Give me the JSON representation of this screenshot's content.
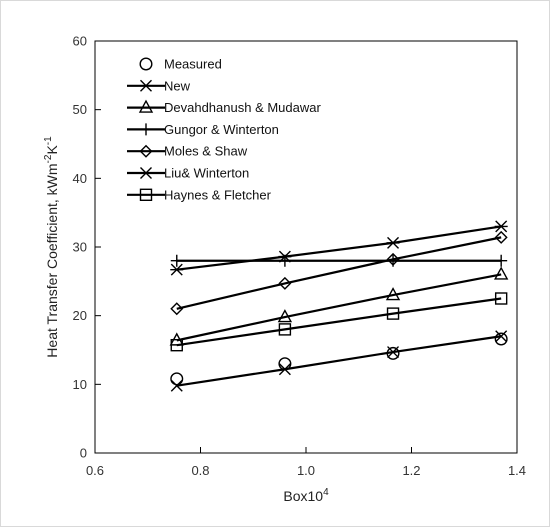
{
  "chart_data": {
    "type": "line",
    "xlabel": "Box10",
    "xlabel_sup": "4",
    "ylabel": "Heat Transfer Coefficient, kWm",
    "ylabel_sup1": "-2",
    "ylabel_mid": "K",
    "ylabel_sup2": "-1",
    "xlim": [
      0.6,
      1.4
    ],
    "ylim": [
      0,
      60
    ],
    "xticks": [
      0.6,
      0.8,
      1.0,
      1.2,
      1.4
    ],
    "xtick_labels": [
      "0.6",
      "0.8",
      "1.0",
      "1.2",
      "1.4"
    ],
    "yticks": [
      0,
      10,
      20,
      30,
      40,
      50,
      60
    ],
    "ytick_labels": [
      "0",
      "10",
      "20",
      "30",
      "40",
      "50",
      "60"
    ],
    "grid": false,
    "legend_position": "top-left",
    "x": [
      0.755,
      0.96,
      1.165,
      1.37
    ],
    "series": [
      {
        "name": "Measured",
        "marker": "circle",
        "line": false,
        "values": [
          10.8,
          13.0,
          14.5,
          16.6
        ]
      },
      {
        "name": "New",
        "marker": "x",
        "line": true,
        "values": [
          9.8,
          12.2,
          14.7,
          17.0
        ]
      },
      {
        "name": "Devahdhanush & Mudawar",
        "marker": "triangle",
        "line": true,
        "values": [
          16.4,
          19.8,
          23.0,
          26.0
        ]
      },
      {
        "name": "Gungor & Winterton",
        "marker": "plus",
        "line": true,
        "values": [
          28.0,
          28.0,
          28.0,
          28.0
        ]
      },
      {
        "name": "Moles & Shaw",
        "marker": "diamond",
        "line": true,
        "values": [
          21.0,
          24.7,
          28.2,
          31.4
        ]
      },
      {
        "name": "Liu& Winterton",
        "marker": "asterisk",
        "line": true,
        "values": [
          26.7,
          28.6,
          30.6,
          33.0
        ]
      },
      {
        "name": "Haynes & Fletcher",
        "marker": "square",
        "line": true,
        "values": [
          15.7,
          18.0,
          20.3,
          22.5
        ]
      }
    ]
  },
  "colors": {
    "line": "#000000",
    "axis": "#000000"
  }
}
